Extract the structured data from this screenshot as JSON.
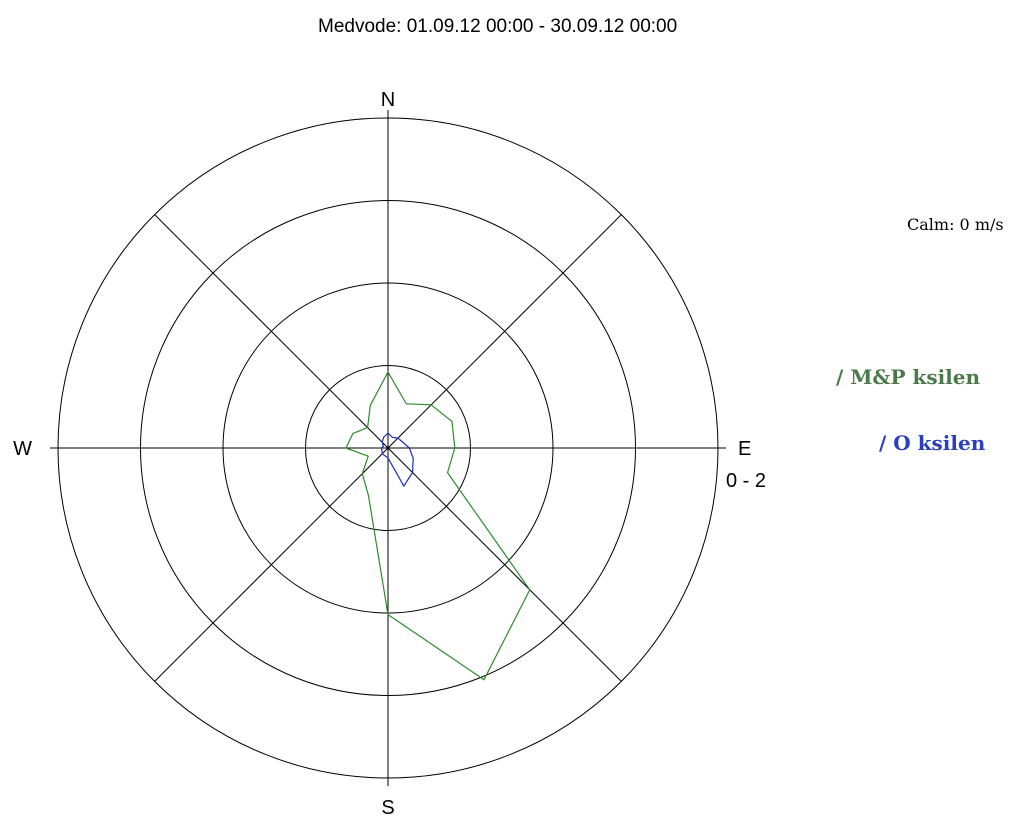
{
  "chart_data": {
    "type": "polar-line",
    "title": "Medvode: 01.09.12 00:00 - 30.09.12 00:00",
    "directions": [
      "N",
      "E",
      "S",
      "W"
    ],
    "range_label": "0 - 2",
    "calm_label": "Calm: 0 m/s",
    "rmax": 40,
    "rings": [
      10,
      20,
      30,
      40
    ],
    "angles_deg": [
      0,
      22.5,
      45,
      67.5,
      90,
      112.5,
      135,
      157.5,
      180,
      202.5,
      225,
      247.5,
      270,
      292.5,
      315,
      337.5
    ],
    "series": [
      {
        "name": "/ M&P ksilen",
        "color": "#2e8b2e",
        "legend_color": "#4a7a4a",
        "values": [
          9.2,
          5.8,
          7.4,
          8.4,
          8.1,
          7.8,
          24.3,
          30.4,
          20.2,
          6.2,
          4.4,
          2.6,
          5.1,
          4.6,
          3.5,
          5.6
        ]
      },
      {
        "name": "/ O ksilen",
        "color": "#1f2fbf",
        "legend_color": "#2a3fbf",
        "values": [
          1.8,
          1.4,
          1.7,
          1.9,
          2.6,
          3.3,
          4.2,
          5.0,
          1.2,
          1.0,
          1.0,
          0.8,
          0.8,
          0.6,
          1.0,
          1.4
        ]
      }
    ]
  }
}
